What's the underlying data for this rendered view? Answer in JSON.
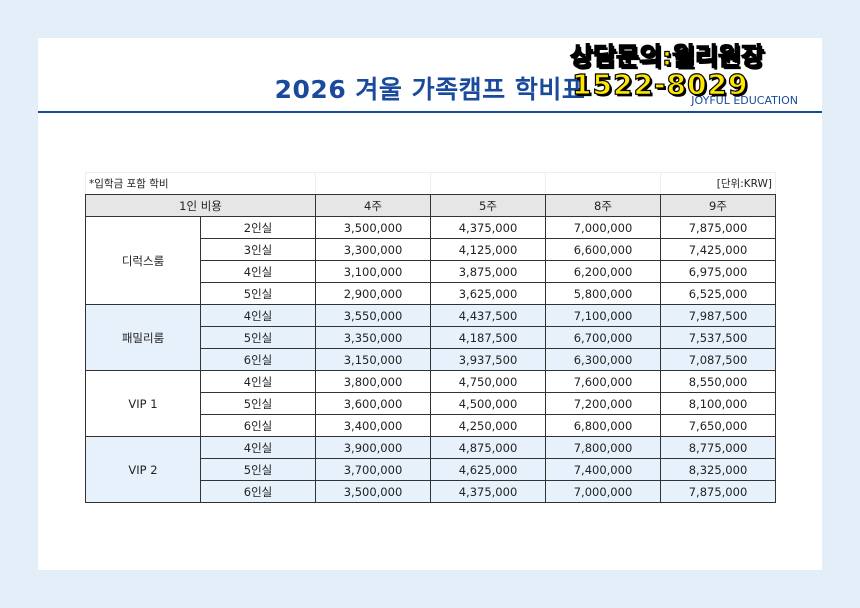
{
  "header": {
    "title": "2026 겨울 가족캠프 학비표",
    "brand": "JOYFUL EDUCATION",
    "contact": "상담문의:윌리원장",
    "phone": "1522-8029"
  },
  "table": {
    "note": "*입학금 포함 학비",
    "unit": "[단위:KRW]",
    "columns": [
      "1인 비용",
      "4주",
      "5주",
      "8주",
      "9주"
    ],
    "groups": [
      {
        "name": "디럭스룸",
        "rows": [
          [
            "2인실",
            "3,500,000",
            "4,375,000",
            "7,000,000",
            "7,875,000"
          ],
          [
            "3인실",
            "3,300,000",
            "4,125,000",
            "6,600,000",
            "7,425,000"
          ],
          [
            "4인실",
            "3,100,000",
            "3,875,000",
            "6,200,000",
            "6,975,000"
          ],
          [
            "5인실",
            "2,900,000",
            "3,625,000",
            "5,800,000",
            "6,525,000"
          ]
        ]
      },
      {
        "name": "패밀리룸",
        "rows": [
          [
            "4인실",
            "3,550,000",
            "4,437,500",
            "7,100,000",
            "7,987,500"
          ],
          [
            "5인실",
            "3,350,000",
            "4,187,500",
            "6,700,000",
            "7,537,500"
          ],
          [
            "6인실",
            "3,150,000",
            "3,937,500",
            "6,300,000",
            "7,087,500"
          ]
        ]
      },
      {
        "name": "VIP 1",
        "rows": [
          [
            "4인실",
            "3,800,000",
            "4,750,000",
            "7,600,000",
            "8,550,000"
          ],
          [
            "5인실",
            "3,600,000",
            "4,500,000",
            "7,200,000",
            "8,100,000"
          ],
          [
            "6인실",
            "3,400,000",
            "4,250,000",
            "6,800,000",
            "7,650,000"
          ]
        ]
      },
      {
        "name": "VIP 2",
        "rows": [
          [
            "4인실",
            "3,900,000",
            "4,875,000",
            "7,800,000",
            "8,775,000"
          ],
          [
            "5인실",
            "3,700,000",
            "4,625,000",
            "7,400,000",
            "8,325,000"
          ],
          [
            "6인실",
            "3,500,000",
            "4,375,000",
            "7,000,000",
            "7,875,000"
          ]
        ]
      }
    ]
  }
}
